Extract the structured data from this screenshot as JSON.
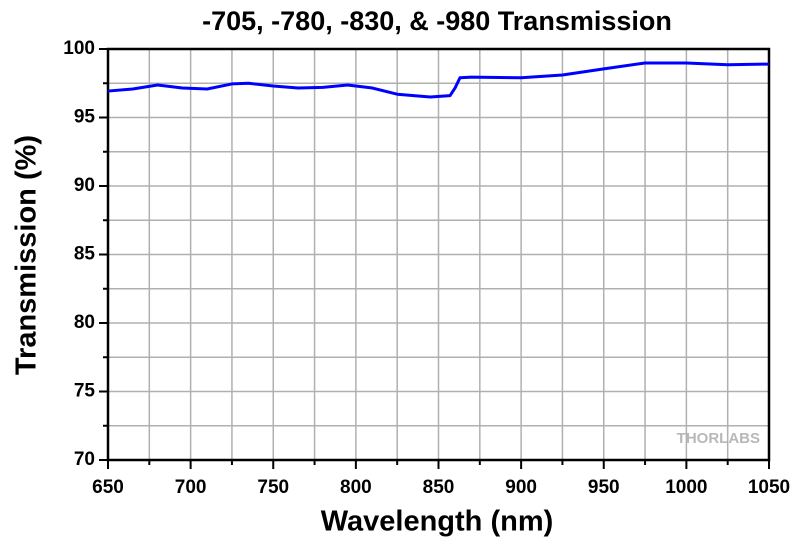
{
  "chart_data": {
    "type": "line",
    "title": "-705, -780, -830, & -980 Transmission",
    "x_label": "Wavelength (nm)",
    "y_label": "Transmission (%)",
    "watermark": "THORLABS",
    "x": [
      650,
      665,
      680,
      695,
      710,
      725,
      735,
      750,
      765,
      780,
      795,
      810,
      825,
      845,
      857,
      860,
      863,
      870,
      900,
      925,
      950,
      975,
      1000,
      1025,
      1050
    ],
    "series": [
      {
        "name": "Transmission",
        "color": "#0000ff",
        "values": [
          96.93,
          97.08,
          97.37,
          97.15,
          97.08,
          97.45,
          97.5,
          97.3,
          97.15,
          97.2,
          97.37,
          97.15,
          96.7,
          96.5,
          96.6,
          97.15,
          97.9,
          97.95,
          97.9,
          98.1,
          98.55,
          98.98,
          98.98,
          98.85,
          98.9
        ]
      }
    ],
    "xlim": [
      650,
      1050
    ],
    "ylim": [
      70,
      100
    ],
    "xticks": [
      650,
      700,
      750,
      800,
      850,
      900,
      950,
      1000,
      1050
    ],
    "yticks": [
      70,
      75,
      80,
      85,
      90,
      95,
      100
    ],
    "x_minor_ticks": [
      675,
      725,
      775,
      825,
      875,
      925,
      975,
      1025
    ],
    "y_minor_ticks": [
      72.5,
      77.5,
      82.5,
      87.5,
      92.5,
      97.5
    ],
    "grid": true
  }
}
